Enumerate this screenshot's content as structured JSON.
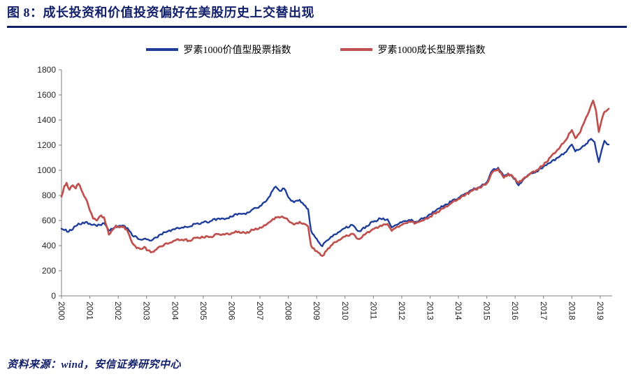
{
  "header": {
    "title": "图 8：成长投资和价值投资偏好在美股历史上交替出现"
  },
  "footer": {
    "source": "资料来源：wind，安信证券研究中心"
  },
  "colors": {
    "accent_navy": "#121f6b",
    "value_line": "#1F3D9B",
    "growth_line": "#C0504D",
    "axis": "#808080"
  },
  "chart_data": {
    "type": "line",
    "title": "",
    "xlabel": "",
    "ylabel": "",
    "legend_position": "top",
    "grid": false,
    "ylim": [
      0,
      1800
    ],
    "y_tick_step": 200,
    "xlim": [
      2000,
      2019.42
    ],
    "x_ticks": [
      2000,
      2001,
      2002,
      2003,
      2004,
      2005,
      2006,
      2007,
      2008,
      2009,
      2010,
      2011,
      2012,
      2013,
      2014,
      2015,
      2016,
      2017,
      2018,
      2019
    ],
    "series": [
      {
        "name": "罗素1000价值型股票指数",
        "color": "#1F3D9B",
        "width": 2.4,
        "points": [
          [
            2000,
            535
          ],
          [
            2000.25,
            510
          ],
          [
            2000.5,
            555
          ],
          [
            2000.75,
            585
          ],
          [
            2001,
            575
          ],
          [
            2001.25,
            555
          ],
          [
            2001.5,
            580
          ],
          [
            2001.67,
            520
          ],
          [
            2001.75,
            535
          ],
          [
            2002,
            555
          ],
          [
            2002.17,
            560
          ],
          [
            2002.33,
            540
          ],
          [
            2002.5,
            480
          ],
          [
            2002.75,
            450
          ],
          [
            2003,
            450
          ],
          [
            2003.17,
            440
          ],
          [
            2003.33,
            465
          ],
          [
            2003.5,
            490
          ],
          [
            2003.75,
            515
          ],
          [
            2004,
            530
          ],
          [
            2004.25,
            545
          ],
          [
            2004.5,
            550
          ],
          [
            2004.75,
            575
          ],
          [
            2005,
            585
          ],
          [
            2005.25,
            595
          ],
          [
            2005.5,
            615
          ],
          [
            2005.75,
            610
          ],
          [
            2006,
            630
          ],
          [
            2006.25,
            655
          ],
          [
            2006.5,
            650
          ],
          [
            2006.75,
            690
          ],
          [
            2007,
            715
          ],
          [
            2007.25,
            765
          ],
          [
            2007.45,
            840
          ],
          [
            2007.55,
            870
          ],
          [
            2007.7,
            835
          ],
          [
            2007.85,
            855
          ],
          [
            2008,
            785
          ],
          [
            2008.2,
            745
          ],
          [
            2008.4,
            765
          ],
          [
            2008.55,
            725
          ],
          [
            2008.7,
            690
          ],
          [
            2008.8,
            520
          ],
          [
            2008.95,
            465
          ],
          [
            2009.1,
            420
          ],
          [
            2009.2,
            395
          ],
          [
            2009.35,
            440
          ],
          [
            2009.5,
            470
          ],
          [
            2009.75,
            505
          ],
          [
            2010,
            540
          ],
          [
            2010.25,
            565
          ],
          [
            2010.5,
            515
          ],
          [
            2010.75,
            555
          ],
          [
            2011,
            590
          ],
          [
            2011.25,
            615
          ],
          [
            2011.5,
            610
          ],
          [
            2011.65,
            545
          ],
          [
            2011.8,
            565
          ],
          [
            2012,
            585
          ],
          [
            2012.25,
            605
          ],
          [
            2012.5,
            590
          ],
          [
            2012.75,
            615
          ],
          [
            2013,
            650
          ],
          [
            2013.25,
            690
          ],
          [
            2013.5,
            720
          ],
          [
            2013.75,
            750
          ],
          [
            2014,
            780
          ],
          [
            2014.25,
            815
          ],
          [
            2014.5,
            845
          ],
          [
            2014.75,
            865
          ],
          [
            2015,
            905
          ],
          [
            2015.2,
            1000
          ],
          [
            2015.4,
            1020
          ],
          [
            2015.6,
            950
          ],
          [
            2015.75,
            975
          ],
          [
            2016,
            930
          ],
          [
            2016.12,
            880
          ],
          [
            2016.3,
            930
          ],
          [
            2016.5,
            965
          ],
          [
            2016.75,
            990
          ],
          [
            2017,
            1030
          ],
          [
            2017.25,
            1060
          ],
          [
            2017.5,
            1100
          ],
          [
            2017.75,
            1140
          ],
          [
            2018,
            1205
          ],
          [
            2018.12,
            1150
          ],
          [
            2018.3,
            1170
          ],
          [
            2018.5,
            1210
          ],
          [
            2018.68,
            1250
          ],
          [
            2018.8,
            1225
          ],
          [
            2018.95,
            1065
          ],
          [
            2019.05,
            1160
          ],
          [
            2019.15,
            1235
          ],
          [
            2019.3,
            1205
          ]
        ]
      },
      {
        "name": "罗素1000成长型股票指数",
        "color": "#C0504D",
        "width": 2.7,
        "points": [
          [
            2000,
            790
          ],
          [
            2000.1,
            875
          ],
          [
            2000.18,
            900
          ],
          [
            2000.28,
            845
          ],
          [
            2000.4,
            880
          ],
          [
            2000.5,
            855
          ],
          [
            2000.6,
            893
          ],
          [
            2000.75,
            820
          ],
          [
            2000.9,
            755
          ],
          [
            2001,
            680
          ],
          [
            2001.12,
            615
          ],
          [
            2001.25,
            600
          ],
          [
            2001.4,
            640
          ],
          [
            2001.5,
            625
          ],
          [
            2001.67,
            488
          ],
          [
            2001.8,
            525
          ],
          [
            2001.92,
            560
          ],
          [
            2002.05,
            545
          ],
          [
            2002.2,
            552
          ],
          [
            2002.35,
            505
          ],
          [
            2002.5,
            420
          ],
          [
            2002.65,
            380
          ],
          [
            2002.8,
            372
          ],
          [
            2002.92,
            390
          ],
          [
            2003.05,
            362
          ],
          [
            2003.2,
            350
          ],
          [
            2003.35,
            370
          ],
          [
            2003.5,
            395
          ],
          [
            2003.75,
            415
          ],
          [
            2004,
            440
          ],
          [
            2004.25,
            448
          ],
          [
            2004.5,
            440
          ],
          [
            2004.75,
            462
          ],
          [
            2005,
            465
          ],
          [
            2005.25,
            470
          ],
          [
            2005.5,
            492
          ],
          [
            2005.75,
            487
          ],
          [
            2006,
            500
          ],
          [
            2006.25,
            512
          ],
          [
            2006.5,
            498
          ],
          [
            2006.75,
            525
          ],
          [
            2007,
            545
          ],
          [
            2007.25,
            572
          ],
          [
            2007.45,
            612
          ],
          [
            2007.6,
            625
          ],
          [
            2007.78,
            632
          ],
          [
            2007.9,
            618
          ],
          [
            2008,
            600
          ],
          [
            2008.2,
            568
          ],
          [
            2008.4,
            590
          ],
          [
            2008.55,
            575
          ],
          [
            2008.7,
            552
          ],
          [
            2008.8,
            400
          ],
          [
            2008.95,
            358
          ],
          [
            2009.1,
            340
          ],
          [
            2009.2,
            318
          ],
          [
            2009.35,
            360
          ],
          [
            2009.5,
            400
          ],
          [
            2009.75,
            440
          ],
          [
            2010,
            472
          ],
          [
            2010.25,
            495
          ],
          [
            2010.5,
            452
          ],
          [
            2010.75,
            500
          ],
          [
            2011,
            532
          ],
          [
            2011.25,
            560
          ],
          [
            2011.5,
            572
          ],
          [
            2011.65,
            518
          ],
          [
            2011.8,
            545
          ],
          [
            2012,
            565
          ],
          [
            2012.25,
            592
          ],
          [
            2012.5,
            580
          ],
          [
            2012.75,
            600
          ],
          [
            2013,
            632
          ],
          [
            2013.25,
            668
          ],
          [
            2013.5,
            700
          ],
          [
            2013.75,
            738
          ],
          [
            2014,
            772
          ],
          [
            2014.25,
            805
          ],
          [
            2014.5,
            838
          ],
          [
            2014.75,
            860
          ],
          [
            2015,
            895
          ],
          [
            2015.2,
            985
          ],
          [
            2015.4,
            1010
          ],
          [
            2015.6,
            940
          ],
          [
            2015.75,
            970
          ],
          [
            2016,
            935
          ],
          [
            2016.12,
            900
          ],
          [
            2016.3,
            935
          ],
          [
            2016.5,
            970
          ],
          [
            2016.75,
            1000
          ],
          [
            2017,
            1040
          ],
          [
            2017.25,
            1105
          ],
          [
            2017.5,
            1165
          ],
          [
            2017.75,
            1230
          ],
          [
            2018,
            1320
          ],
          [
            2018.12,
            1255
          ],
          [
            2018.3,
            1305
          ],
          [
            2018.5,
            1420
          ],
          [
            2018.65,
            1500
          ],
          [
            2018.75,
            1555
          ],
          [
            2018.85,
            1475
          ],
          [
            2018.95,
            1305
          ],
          [
            2019.05,
            1400
          ],
          [
            2019.15,
            1465
          ],
          [
            2019.3,
            1490
          ]
        ]
      }
    ]
  }
}
